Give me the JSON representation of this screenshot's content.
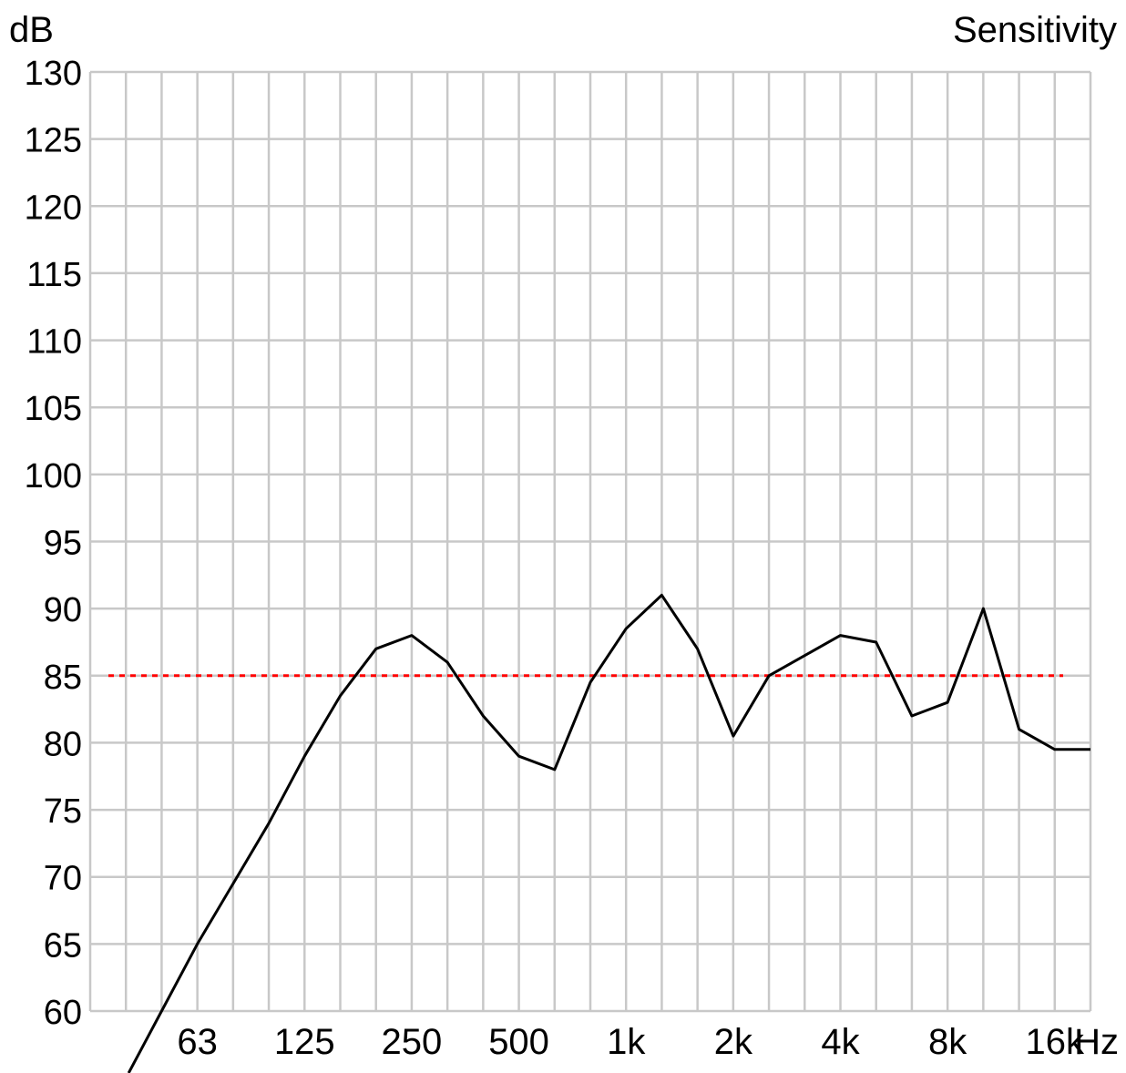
{
  "chart_data": {
    "type": "line",
    "title": "Sensitivity",
    "ylabel": "dB",
    "xlabel": "Hz",
    "ylim": [
      60,
      130
    ],
    "y_ticks": [
      60,
      65,
      70,
      75,
      80,
      85,
      90,
      95,
      100,
      105,
      110,
      115,
      120,
      125,
      130
    ],
    "y_tick_labels": [
      "60",
      "65",
      "70",
      "75",
      "80",
      "85",
      "90",
      "95",
      "100",
      "105",
      "110",
      "115",
      "120",
      "125",
      "130"
    ],
    "x_scale": "log",
    "xlim": [
      31.5,
      20000
    ],
    "x_grid": [
      31.5,
      40,
      50,
      63,
      80,
      100,
      125,
      160,
      200,
      250,
      315,
      400,
      500,
      630,
      800,
      1000,
      1250,
      1600,
      2000,
      2500,
      3150,
      4000,
      5000,
      6300,
      8000,
      10000,
      12500,
      16000,
      20000
    ],
    "x_ticks": [
      63,
      125,
      250,
      500,
      1000,
      2000,
      4000,
      8000,
      16000
    ],
    "x_tick_labels": [
      "63",
      "125",
      "250",
      "500",
      "1k",
      "2k",
      "4k",
      "8k",
      "16k"
    ],
    "grid": true,
    "series": [
      {
        "color": "#000000",
        "x": [
          40,
          50,
          63,
          80,
          100,
          125,
          160,
          200,
          250,
          315,
          400,
          500,
          630,
          800,
          1000,
          1250,
          1600,
          2000,
          2500,
          3150,
          4000,
          5000,
          6300,
          8000,
          10000,
          12500,
          16000,
          20000
        ],
        "y": [
          55,
          60,
          65,
          69.5,
          74,
          79,
          83.5,
          87,
          88,
          86,
          82,
          79,
          78,
          84.5,
          88.5,
          91,
          87,
          80.5,
          85,
          86.5,
          88,
          87.5,
          82,
          83,
          90,
          81,
          79.5,
          79.5
        ]
      }
    ],
    "reference_line": {
      "y": 85,
      "color": "#ff0000",
      "style": "dotted"
    }
  },
  "colors": {
    "grid": "#c8c8c8",
    "series": "#000000",
    "reference": "#ff0000",
    "background": "#ffffff"
  }
}
